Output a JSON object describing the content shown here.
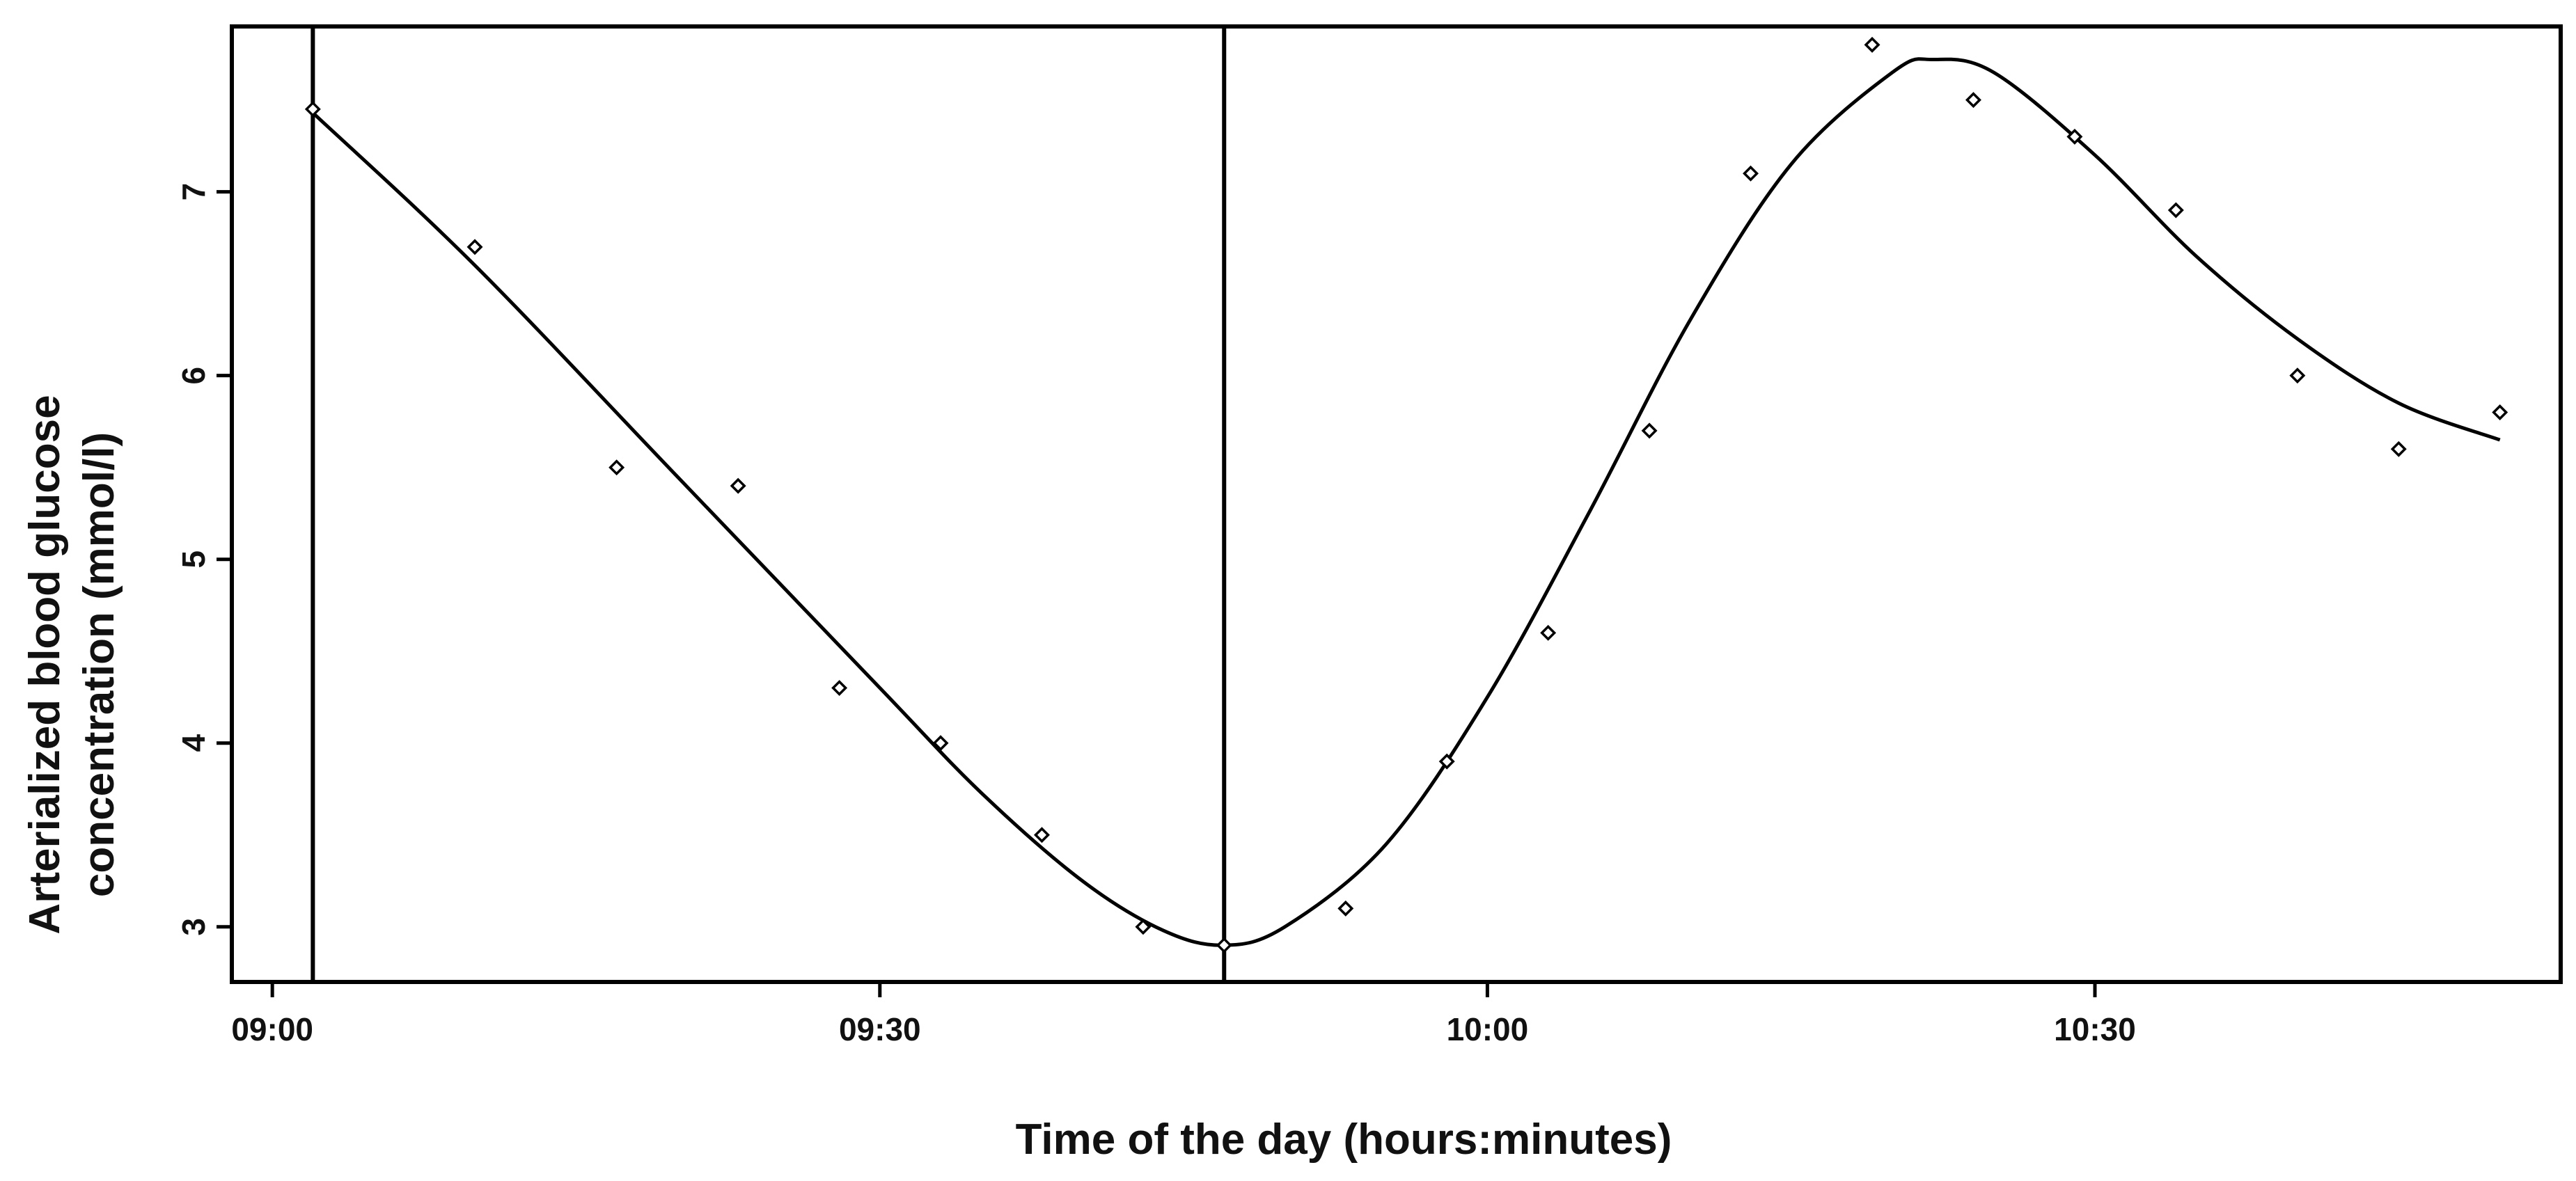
{
  "chart_data": {
    "type": "scatter",
    "title": "",
    "xlabel": "Time of the day (hours:minutes)",
    "ylabel_lines": [
      "Arterialized blood glucose",
      "concentration (mmol/l)"
    ],
    "x_unit": "time of day (hh:mm)",
    "xlim": [
      "08:58",
      "10:53"
    ],
    "ylim": [
      2.7,
      7.9
    ],
    "x_ticks": [
      {
        "value": "09:00",
        "label": "09:00"
      },
      {
        "value": "09:30",
        "label": "09:30"
      },
      {
        "value": "10:00",
        "label": "10:00"
      },
      {
        "value": "10:30",
        "label": "10:30"
      }
    ],
    "y_ticks": [
      {
        "value": 3,
        "label": "3"
      },
      {
        "value": 4,
        "label": "4"
      },
      {
        "value": 5,
        "label": "5"
      },
      {
        "value": 6,
        "label": "6"
      },
      {
        "value": 7,
        "label": "7"
      }
    ],
    "vertical_lines": [
      "09:02",
      "09:47"
    ],
    "grid": false,
    "series": [
      {
        "kind": "points",
        "marker": "open-diamond",
        "points": [
          {
            "x": "09:02",
            "y": 7.45
          },
          {
            "x": "09:10",
            "y": 6.7
          },
          {
            "x": "09:17",
            "y": 5.5
          },
          {
            "x": "09:23",
            "y": 5.4
          },
          {
            "x": "09:28",
            "y": 4.3
          },
          {
            "x": "09:33",
            "y": 4.0
          },
          {
            "x": "09:38",
            "y": 3.5
          },
          {
            "x": "09:43",
            "y": 3.0
          },
          {
            "x": "09:47",
            "y": 2.9
          },
          {
            "x": "09:53",
            "y": 3.1
          },
          {
            "x": "09:58",
            "y": 3.9
          },
          {
            "x": "10:03",
            "y": 4.6
          },
          {
            "x": "10:08",
            "y": 5.7
          },
          {
            "x": "10:13",
            "y": 7.1
          },
          {
            "x": "10:19",
            "y": 7.8
          },
          {
            "x": "10:24",
            "y": 7.5
          },
          {
            "x": "10:29",
            "y": 7.3
          },
          {
            "x": "10:34",
            "y": 6.9
          },
          {
            "x": "10:40",
            "y": 6.0
          },
          {
            "x": "10:45",
            "y": 5.6
          },
          {
            "x": "10:50",
            "y": 5.8
          }
        ]
      },
      {
        "kind": "fitted-line",
        "points": [
          {
            "x": "09:02",
            "y": 7.43
          },
          {
            "x": "09:10",
            "y": 6.6
          },
          {
            "x": "09:20",
            "y": 5.45
          },
          {
            "x": "09:30",
            "y": 4.3
          },
          {
            "x": "09:35",
            "y": 3.73
          },
          {
            "x": "09:40",
            "y": 3.25
          },
          {
            "x": "09:44",
            "y": 2.98
          },
          {
            "x": "09:47",
            "y": 2.9
          },
          {
            "x": "09:50",
            "y": 3.0
          },
          {
            "x": "09:55",
            "y": 3.45
          },
          {
            "x": "10:00",
            "y": 4.25
          },
          {
            "x": "10:05",
            "y": 5.25
          },
          {
            "x": "10:10",
            "y": 6.3
          },
          {
            "x": "10:15",
            "y": 7.15
          },
          {
            "x": "10:20",
            "y": 7.65
          },
          {
            "x": "10:22",
            "y": 7.72
          },
          {
            "x": "10:25",
            "y": 7.65
          },
          {
            "x": "10:30",
            "y": 7.2
          },
          {
            "x": "10:35",
            "y": 6.65
          },
          {
            "x": "10:40",
            "y": 6.2
          },
          {
            "x": "10:45",
            "y": 5.85
          },
          {
            "x": "10:50",
            "y": 5.65
          }
        ]
      }
    ]
  }
}
